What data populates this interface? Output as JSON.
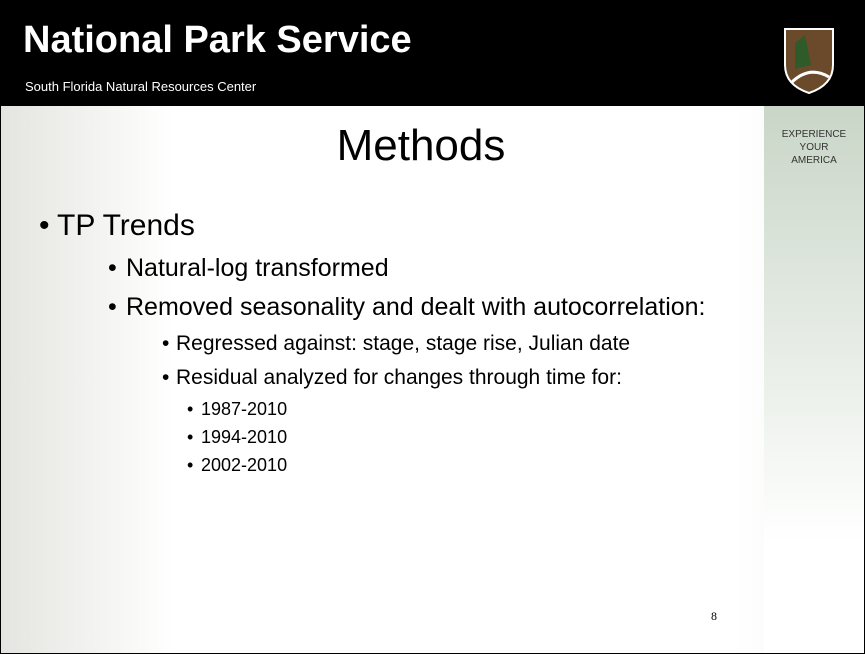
{
  "header": {
    "title": "National Park Service",
    "subtitle": "South Florida Natural Resources Center"
  },
  "sidebar": {
    "lines": [
      "EXPERIENCE",
      "YOUR",
      "AMERICA"
    ]
  },
  "slide": {
    "title": "Methods",
    "page_number": "8",
    "bullets": [
      {
        "level": 1,
        "text": "TP Trends"
      },
      {
        "level": 2,
        "text": "Natural-log transformed"
      },
      {
        "level": 2,
        "text": "Removed seasonality and dealt with autocorrelation:"
      },
      {
        "level": 3,
        "text": "Regressed against: stage, stage rise, Julian date"
      },
      {
        "level": 3,
        "text": "Residual analyzed for changes through time for:"
      },
      {
        "level": 4,
        "text": "1987-2010"
      },
      {
        "level": 4,
        "text": "1994-2010"
      },
      {
        "level": 4,
        "text": "2002-2010"
      }
    ]
  }
}
